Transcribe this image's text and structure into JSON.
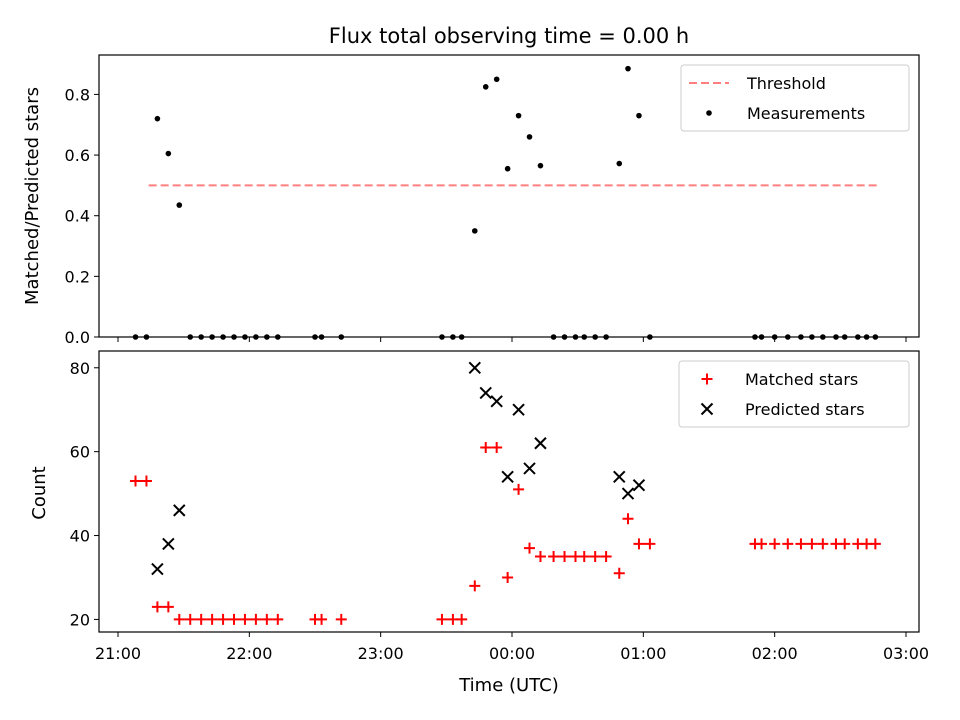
{
  "chart_data": [
    {
      "type": "scatter",
      "title": "Flux total observing time = 0.00 h",
      "xlabel": "",
      "ylabel": "Matched/Predicted stars",
      "xlim": [
        "21:00",
        "03:00"
      ],
      "ylim": [
        0,
        0.93
      ],
      "yticks": [
        0.0,
        0.2,
        0.4,
        0.6,
        0.8
      ],
      "ytick_labels": [
        "0.0",
        "0.2",
        "0.4",
        "0.6",
        "0.8"
      ],
      "grid": false,
      "legend_position": "top-right",
      "series": [
        {
          "name": "Threshold",
          "style": "dashed-line",
          "color": "#ff7f7f",
          "points": [
            [
              "21:14",
              0.5
            ],
            [
              "02:48",
              0.5
            ]
          ]
        },
        {
          "name": "Measurements",
          "style": "dot",
          "color": "#000000",
          "points": [
            [
              "21:08",
              0
            ],
            [
              "21:13",
              0
            ],
            [
              "21:18",
              0.72
            ],
            [
              "21:23",
              0.605
            ],
            [
              "21:28",
              0.435
            ],
            [
              "21:33",
              0
            ],
            [
              "21:38",
              0
            ],
            [
              "21:43",
              0
            ],
            [
              "21:48",
              0
            ],
            [
              "21:53",
              0
            ],
            [
              "21:58",
              0
            ],
            [
              "22:03",
              0
            ],
            [
              "22:08",
              0
            ],
            [
              "22:13",
              0
            ],
            [
              "22:30",
              0
            ],
            [
              "22:33",
              0
            ],
            [
              "22:42",
              0
            ],
            [
              "23:28",
              0
            ],
            [
              "23:33",
              0
            ],
            [
              "23:37",
              0
            ],
            [
              "23:43",
              0.35
            ],
            [
              "23:48",
              0.825
            ],
            [
              "23:53",
              0.85
            ],
            [
              "23:58",
              0.555
            ],
            [
              "00:03",
              0.73
            ],
            [
              "00:08",
              0.66
            ],
            [
              "00:13",
              0.565
            ],
            [
              "00:19",
              0
            ],
            [
              "00:24",
              0
            ],
            [
              "00:29",
              0
            ],
            [
              "00:33",
              0
            ],
            [
              "00:38",
              0
            ],
            [
              "00:43",
              0
            ],
            [
              "00:49",
              0.572
            ],
            [
              "00:53",
              0.885
            ],
            [
              "00:58",
              0.73
            ],
            [
              "01:03",
              0
            ],
            [
              "01:51",
              0
            ],
            [
              "01:54",
              0
            ],
            [
              "02:00",
              0
            ],
            [
              "02:06",
              0
            ],
            [
              "02:12",
              0
            ],
            [
              "02:17",
              0
            ],
            [
              "02:22",
              0
            ],
            [
              "02:28",
              0
            ],
            [
              "02:32",
              0
            ],
            [
              "02:38",
              0
            ],
            [
              "02:42",
              0
            ],
            [
              "02:46",
              0
            ]
          ]
        }
      ]
    },
    {
      "type": "scatter",
      "title": "",
      "xlabel": "Time (UTC)",
      "ylabel": "Count",
      "xlim": [
        "21:00",
        "03:00"
      ],
      "xticks": [
        "21:00",
        "22:00",
        "23:00",
        "00:00",
        "01:00",
        "02:00",
        "03:00"
      ],
      "ylim": [
        17,
        84
      ],
      "yticks": [
        20,
        40,
        60,
        80
      ],
      "ytick_labels": [
        "20",
        "40",
        "60",
        "80"
      ],
      "grid": false,
      "legend_position": "top-right",
      "series": [
        {
          "name": "Matched stars",
          "style": "plus",
          "color": "#ff0000",
          "points": [
            [
              "21:08",
              53
            ],
            [
              "21:13",
              53
            ],
            [
              "21:18",
              23
            ],
            [
              "21:23",
              23
            ],
            [
              "21:28",
              20
            ],
            [
              "21:33",
              20
            ],
            [
              "21:38",
              20
            ],
            [
              "21:43",
              20
            ],
            [
              "21:48",
              20
            ],
            [
              "21:53",
              20
            ],
            [
              "21:58",
              20
            ],
            [
              "22:03",
              20
            ],
            [
              "22:08",
              20
            ],
            [
              "22:13",
              20
            ],
            [
              "22:30",
              20
            ],
            [
              "22:33",
              20
            ],
            [
              "22:42",
              20
            ],
            [
              "23:28",
              20
            ],
            [
              "23:33",
              20
            ],
            [
              "23:37",
              20
            ],
            [
              "23:43",
              28
            ],
            [
              "23:48",
              61
            ],
            [
              "23:53",
              61
            ],
            [
              "23:58",
              30
            ],
            [
              "00:03",
              51
            ],
            [
              "00:08",
              37
            ],
            [
              "00:13",
              35
            ],
            [
              "00:19",
              35
            ],
            [
              "00:24",
              35
            ],
            [
              "00:29",
              35
            ],
            [
              "00:33",
              35
            ],
            [
              "00:38",
              35
            ],
            [
              "00:43",
              35
            ],
            [
              "00:49",
              31
            ],
            [
              "00:53",
              44
            ],
            [
              "00:58",
              38
            ],
            [
              "01:03",
              38
            ],
            [
              "01:51",
              38
            ],
            [
              "01:54",
              38
            ],
            [
              "02:00",
              38
            ],
            [
              "02:06",
              38
            ],
            [
              "02:12",
              38
            ],
            [
              "02:17",
              38
            ],
            [
              "02:22",
              38
            ],
            [
              "02:28",
              38
            ],
            [
              "02:32",
              38
            ],
            [
              "02:38",
              38
            ],
            [
              "02:42",
              38
            ],
            [
              "02:46",
              38
            ]
          ]
        },
        {
          "name": "Predicted stars",
          "style": "x",
          "color": "#000000",
          "points": [
            [
              "21:18",
              32
            ],
            [
              "21:23",
              38
            ],
            [
              "21:28",
              46
            ],
            [
              "23:43",
              80
            ],
            [
              "23:48",
              74
            ],
            [
              "23:53",
              72
            ],
            [
              "23:58",
              54
            ],
            [
              "00:03",
              70
            ],
            [
              "00:08",
              56
            ],
            [
              "00:13",
              62
            ],
            [
              "00:49",
              54
            ],
            [
              "00:53",
              50
            ],
            [
              "00:58",
              52
            ]
          ]
        }
      ]
    }
  ]
}
